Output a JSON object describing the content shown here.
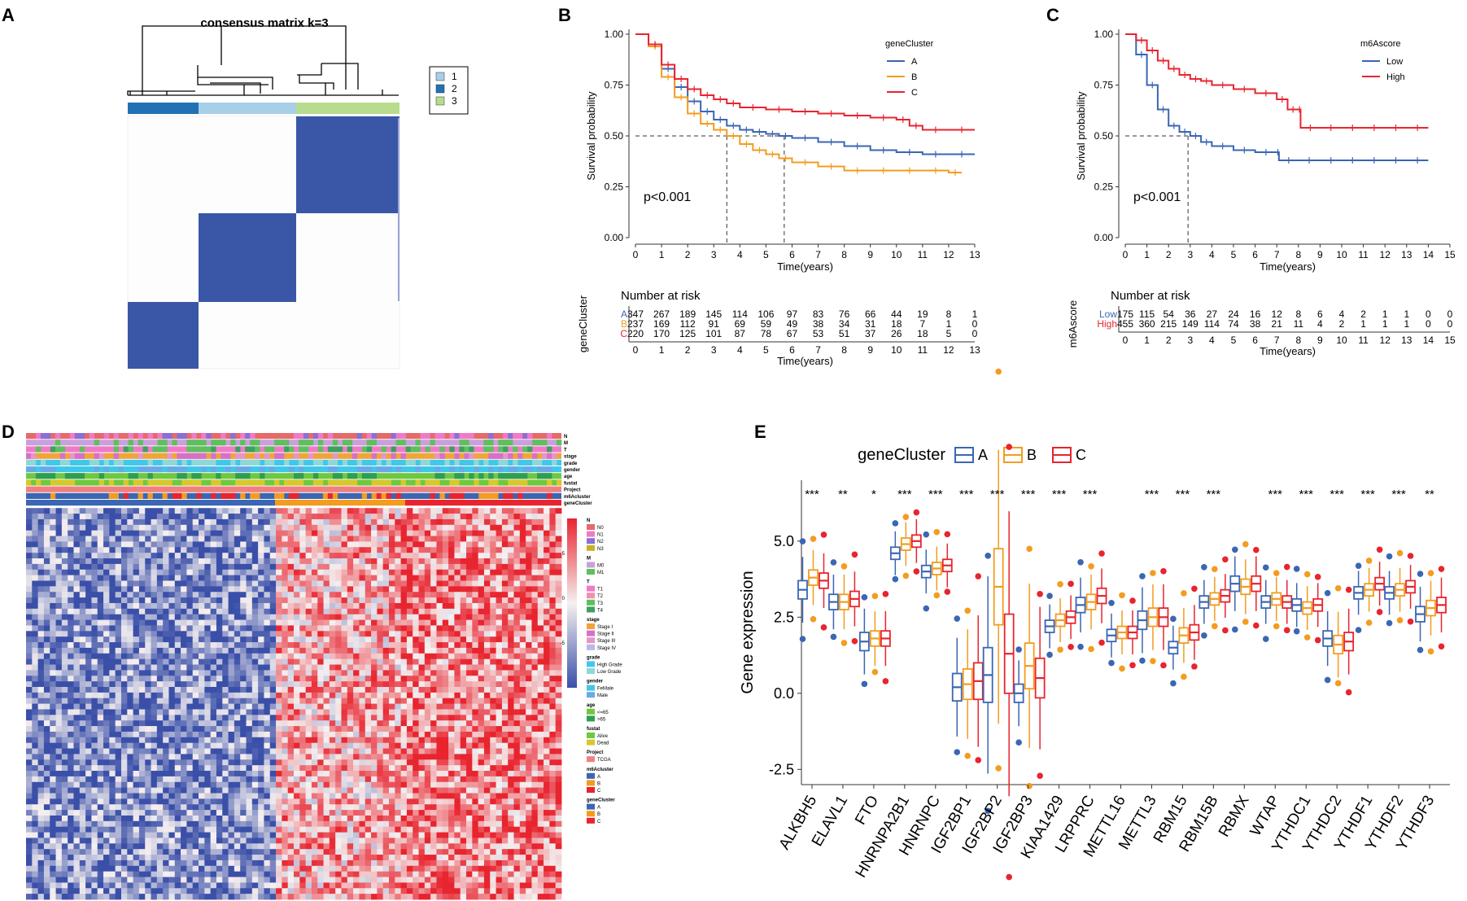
{
  "colors": {
    "cluster1": "#a7cfe8",
    "cluster2": "#2171b5",
    "cluster3": "#b7dc8e",
    "matrix": "#3a57a7",
    "geneA": "#3a66b4",
    "geneB": "#f39c1f",
    "geneC": "#e8242f",
    "low": "#3a66b4",
    "high": "#e8242f",
    "hm_blue": "#3a4fa8",
    "hm_red": "#e8242f",
    "hm_white": "#f5f0f0"
  },
  "panels": {
    "A": {
      "label": "A",
      "title": "consensus matrix k=3",
      "legend": [
        "1",
        "2",
        "3"
      ]
    },
    "B": {
      "label": "B"
    },
    "C": {
      "label": "C"
    },
    "D": {
      "label": "D"
    },
    "E": {
      "label": "E"
    }
  },
  "chart_data": [
    {
      "id": "B",
      "type": "line",
      "title": "",
      "xlabel": "Time(years)",
      "ylabel": "Survival probability",
      "xlim": [
        0,
        13
      ],
      "ylim": [
        0,
        1
      ],
      "xticks": [
        "0",
        "1",
        "2",
        "3",
        "4",
        "5",
        "6",
        "7",
        "8",
        "9",
        "10",
        "11",
        "12",
        "13"
      ],
      "yticks": [
        "0.00",
        "0.25",
        "0.50",
        "0.75",
        "1.00"
      ],
      "legend_title": "geneCluster",
      "pvalue": "p<0.001",
      "medians": [
        3.5,
        5.7
      ],
      "series": [
        {
          "name": "A",
          "x": [
            0,
            0.5,
            1,
            1.5,
            2,
            2.5,
            3,
            3.5,
            4,
            4.5,
            5,
            5.5,
            6,
            7,
            8,
            9,
            10,
            11,
            12,
            13
          ],
          "y": [
            1,
            0.95,
            0.83,
            0.74,
            0.67,
            0.62,
            0.58,
            0.55,
            0.53,
            0.52,
            0.51,
            0.5,
            0.49,
            0.47,
            0.45,
            0.43,
            0.42,
            0.41,
            0.41,
            0.41
          ]
        },
        {
          "name": "B",
          "x": [
            0,
            0.5,
            1,
            1.5,
            2,
            2.5,
            3,
            3.5,
            4,
            4.5,
            5,
            5.5,
            6,
            7,
            8,
            9,
            10,
            11,
            12,
            12.5
          ],
          "y": [
            1,
            0.94,
            0.79,
            0.69,
            0.61,
            0.56,
            0.53,
            0.5,
            0.46,
            0.43,
            0.41,
            0.39,
            0.37,
            0.35,
            0.33,
            0.33,
            0.33,
            0.33,
            0.32,
            0.32
          ]
        },
        {
          "name": "C",
          "x": [
            0,
            0.5,
            1,
            1.5,
            2,
            2.5,
            3,
            3.5,
            4,
            5,
            6,
            7,
            8,
            9,
            10,
            10.5,
            11,
            12,
            13
          ],
          "y": [
            1,
            0.95,
            0.85,
            0.78,
            0.73,
            0.7,
            0.68,
            0.66,
            0.64,
            0.63,
            0.62,
            0.61,
            0.6,
            0.59,
            0.58,
            0.55,
            0.53,
            0.53,
            0.53
          ]
        }
      ],
      "risk_table": {
        "title": "Number at risk",
        "ylabel": "geneCluster",
        "xlabel": "Time(years)",
        "rows": [
          {
            "name": "A",
            "values": [
              "347",
              "267",
              "189",
              "145",
              "114",
              "106",
              "97",
              "83",
              "76",
              "66",
              "44",
              "19",
              "8",
              "1"
            ]
          },
          {
            "name": "B",
            "values": [
              "237",
              "169",
              "112",
              "91",
              "69",
              "59",
              "49",
              "38",
              "34",
              "31",
              "18",
              "7",
              "1",
              "0"
            ]
          },
          {
            "name": "C",
            "values": [
              "220",
              "170",
              "125",
              "101",
              "87",
              "78",
              "67",
              "53",
              "51",
              "37",
              "26",
              "18",
              "5",
              "0"
            ]
          }
        ]
      }
    },
    {
      "id": "C",
      "type": "line",
      "title": "",
      "xlabel": "Time(years)",
      "ylabel": "Survival probability",
      "xlim": [
        0,
        15
      ],
      "ylim": [
        0,
        1
      ],
      "xticks": [
        "0",
        "1",
        "2",
        "3",
        "4",
        "5",
        "6",
        "7",
        "8",
        "9",
        "10",
        "11",
        "12",
        "13",
        "14",
        "15"
      ],
      "yticks": [
        "0.00",
        "0.25",
        "0.50",
        "0.75",
        "1.00"
      ],
      "legend_title": "m6Ascore",
      "pvalue": "p<0.001",
      "medians": [
        2.9
      ],
      "series": [
        {
          "name": "Low",
          "x": [
            0,
            0.5,
            1,
            1.5,
            2,
            2.5,
            3,
            3.5,
            4,
            5,
            6,
            7,
            7.1,
            8,
            9,
            10,
            11,
            12,
            13,
            14
          ],
          "y": [
            1,
            0.9,
            0.75,
            0.63,
            0.55,
            0.52,
            0.5,
            0.47,
            0.45,
            0.43,
            0.42,
            0.42,
            0.38,
            0.38,
            0.38,
            0.38,
            0.38,
            0.38,
            0.38,
            0.38
          ]
        },
        {
          "name": "High",
          "x": [
            0,
            0.5,
            1,
            1.5,
            2,
            2.5,
            3,
            3.5,
            4,
            5,
            6,
            7,
            7.5,
            8,
            8.1,
            9,
            10,
            11,
            12,
            13,
            14
          ],
          "y": [
            1,
            0.97,
            0.92,
            0.87,
            0.83,
            0.8,
            0.78,
            0.77,
            0.75,
            0.73,
            0.71,
            0.68,
            0.63,
            0.63,
            0.54,
            0.54,
            0.54,
            0.54,
            0.54,
            0.54,
            0.54
          ]
        }
      ],
      "risk_table": {
        "title": "Number at risk",
        "ylabel": "m6Ascore",
        "xlabel": "Time(years)",
        "rows": [
          {
            "name": "Low",
            "values": [
              "175",
              "115",
              "54",
              "36",
              "27",
              "24",
              "16",
              "12",
              "8",
              "6",
              "4",
              "2",
              "1",
              "1",
              "0",
              "0"
            ]
          },
          {
            "name": "High",
            "values": [
              "455",
              "360",
              "215",
              "149",
              "114",
              "74",
              "38",
              "21",
              "11",
              "4",
              "2",
              "1",
              "1",
              "1",
              "0",
              "0"
            ]
          }
        ]
      }
    },
    {
      "id": "D",
      "type": "heatmap",
      "annotation_rows": [
        "N",
        "M",
        "T",
        "stage",
        "grade",
        "gender",
        "age",
        "fustat",
        "Project",
        "m6Acluster",
        "geneCluster"
      ],
      "colorbar_ticks": [
        "5",
        "0",
        "-5"
      ],
      "legend_groups": [
        {
          "title": "N",
          "items": [
            {
              "label": "N0",
              "color": "#e66a6a"
            },
            {
              "label": "N1",
              "color": "#f07ac8"
            },
            {
              "label": "N2",
              "color": "#8a6fd6"
            },
            {
              "label": "N3",
              "color": "#c9b023"
            }
          ]
        },
        {
          "title": "M",
          "items": [
            {
              "label": "M0",
              "color": "#c9a0dc"
            },
            {
              "label": "M1",
              "color": "#5fbf5f"
            }
          ]
        },
        {
          "title": "T",
          "items": [
            {
              "label": "T1",
              "color": "#f07ac8"
            },
            {
              "label": "T2",
              "color": "#f38fb0"
            },
            {
              "label": "T3",
              "color": "#5fbf5f"
            },
            {
              "label": "T4",
              "color": "#3f9f5f"
            }
          ]
        },
        {
          "title": "stage",
          "items": [
            {
              "label": "Stage I",
              "color": "#f2a33a"
            },
            {
              "label": "Stage II",
              "color": "#d96fc8"
            },
            {
              "label": "Stage III",
              "color": "#e695c8"
            },
            {
              "label": "Stage IV",
              "color": "#b8b8e8"
            }
          ]
        },
        {
          "title": "grade",
          "items": [
            {
              "label": "High Grade",
              "color": "#41c7e8"
            },
            {
              "label": "Low Grade",
              "color": "#8ed8d8"
            }
          ]
        },
        {
          "title": "gender",
          "items": [
            {
              "label": "FeMale",
              "color": "#41c7e8"
            },
            {
              "label": "Male",
              "color": "#6aa9e8"
            }
          ]
        },
        {
          "title": "age",
          "items": [
            {
              "label": "<=65",
              "color": "#6fc83f"
            },
            {
              "label": ">65",
              "color": "#2f9f4f"
            }
          ]
        },
        {
          "title": "fustat",
          "items": [
            {
              "label": "Alive",
              "color": "#6fc83f"
            },
            {
              "label": "Dead",
              "color": "#d6c82f"
            }
          ]
        },
        {
          "title": "Project",
          "items": [
            {
              "label": "TCGA",
              "color": "#f08080"
            }
          ]
        },
        {
          "title": "m6Acluster",
          "items": [
            {
              "label": "A",
              "color": "#3a66b4"
            },
            {
              "label": "B",
              "color": "#f39c1f"
            },
            {
              "label": "C",
              "color": "#e8242f"
            }
          ]
        },
        {
          "title": "geneCluster",
          "items": [
            {
              "label": "A",
              "color": "#3a66b4"
            },
            {
              "label": "B",
              "color": "#f39c1f"
            },
            {
              "label": "C",
              "color": "#e8242f"
            }
          ]
        }
      ]
    },
    {
      "id": "E",
      "type": "box",
      "legend_title": "geneCluster",
      "legend": [
        "A",
        "B",
        "C"
      ],
      "ylabel": "Gene expression",
      "ylim": [
        -3,
        7
      ],
      "yticks": [
        -2.5,
        0.0,
        2.5,
        5.0
      ],
      "ytick_labels": [
        "-2.5",
        "0.0",
        "2.5",
        "5.0"
      ],
      "categories": [
        "ALKBH5",
        "ELAVL1",
        "FTO",
        "HNRNPA2B1",
        "HNRNPC",
        "IGF2BP1",
        "IGF2BP2",
        "IGF2BP3",
        "KIAA1429",
        "LRPPRC",
        "METTL16",
        "METTL3",
        "RBM15",
        "RBM15B",
        "RBMX",
        "WTAP",
        "YTHDC1",
        "YTHDC2",
        "YTHDF1",
        "YTHDF2",
        "YTHDF3"
      ],
      "significance": [
        "***",
        "**",
        "*",
        "***",
        "***",
        "***",
        "***",
        "***",
        "***",
        "***",
        "",
        "***",
        "***",
        "***",
        "",
        "***",
        "***",
        "***",
        "***",
        "***",
        "**"
      ],
      "medians": {
        "A": [
          3.4,
          3.0,
          1.7,
          4.6,
          4.0,
          0.2,
          0.6,
          0.0,
          2.2,
          2.9,
          1.9,
          2.4,
          1.5,
          3.0,
          3.6,
          3.0,
          2.9,
          1.8,
          3.3,
          3.3,
          2.6
        ],
        "B": [
          3.8,
          3.0,
          1.8,
          4.9,
          4.1,
          0.3,
          3.5,
          0.9,
          2.4,
          3.0,
          2.0,
          2.5,
          1.9,
          3.1,
          3.5,
          3.1,
          2.8,
          1.6,
          3.4,
          3.4,
          2.8
        ],
        "C": [
          3.7,
          3.1,
          1.8,
          5.0,
          4.2,
          0.4,
          1.3,
          0.5,
          2.5,
          3.2,
          2.0,
          2.5,
          2.0,
          3.2,
          3.6,
          3.0,
          2.9,
          1.7,
          3.6,
          3.5,
          2.9
        ]
      },
      "iqr": {
        "A": [
          0.6,
          0.5,
          0.6,
          0.4,
          0.4,
          0.9,
          1.8,
          0.6,
          0.4,
          0.5,
          0.4,
          0.6,
          0.4,
          0.4,
          0.5,
          0.4,
          0.4,
          0.5,
          0.4,
          0.4,
          0.5
        ],
        "B": [
          0.5,
          0.5,
          0.5,
          0.4,
          0.4,
          1.0,
          2.5,
          1.5,
          0.4,
          0.5,
          0.4,
          0.6,
          0.5,
          0.4,
          0.5,
          0.4,
          0.4,
          0.6,
          0.4,
          0.4,
          0.5
        ],
        "C": [
          0.5,
          0.5,
          0.5,
          0.4,
          0.4,
          1.2,
          2.6,
          1.3,
          0.4,
          0.5,
          0.4,
          0.6,
          0.5,
          0.4,
          0.5,
          0.4,
          0.4,
          0.6,
          0.4,
          0.4,
          0.5
        ]
      }
    }
  ]
}
